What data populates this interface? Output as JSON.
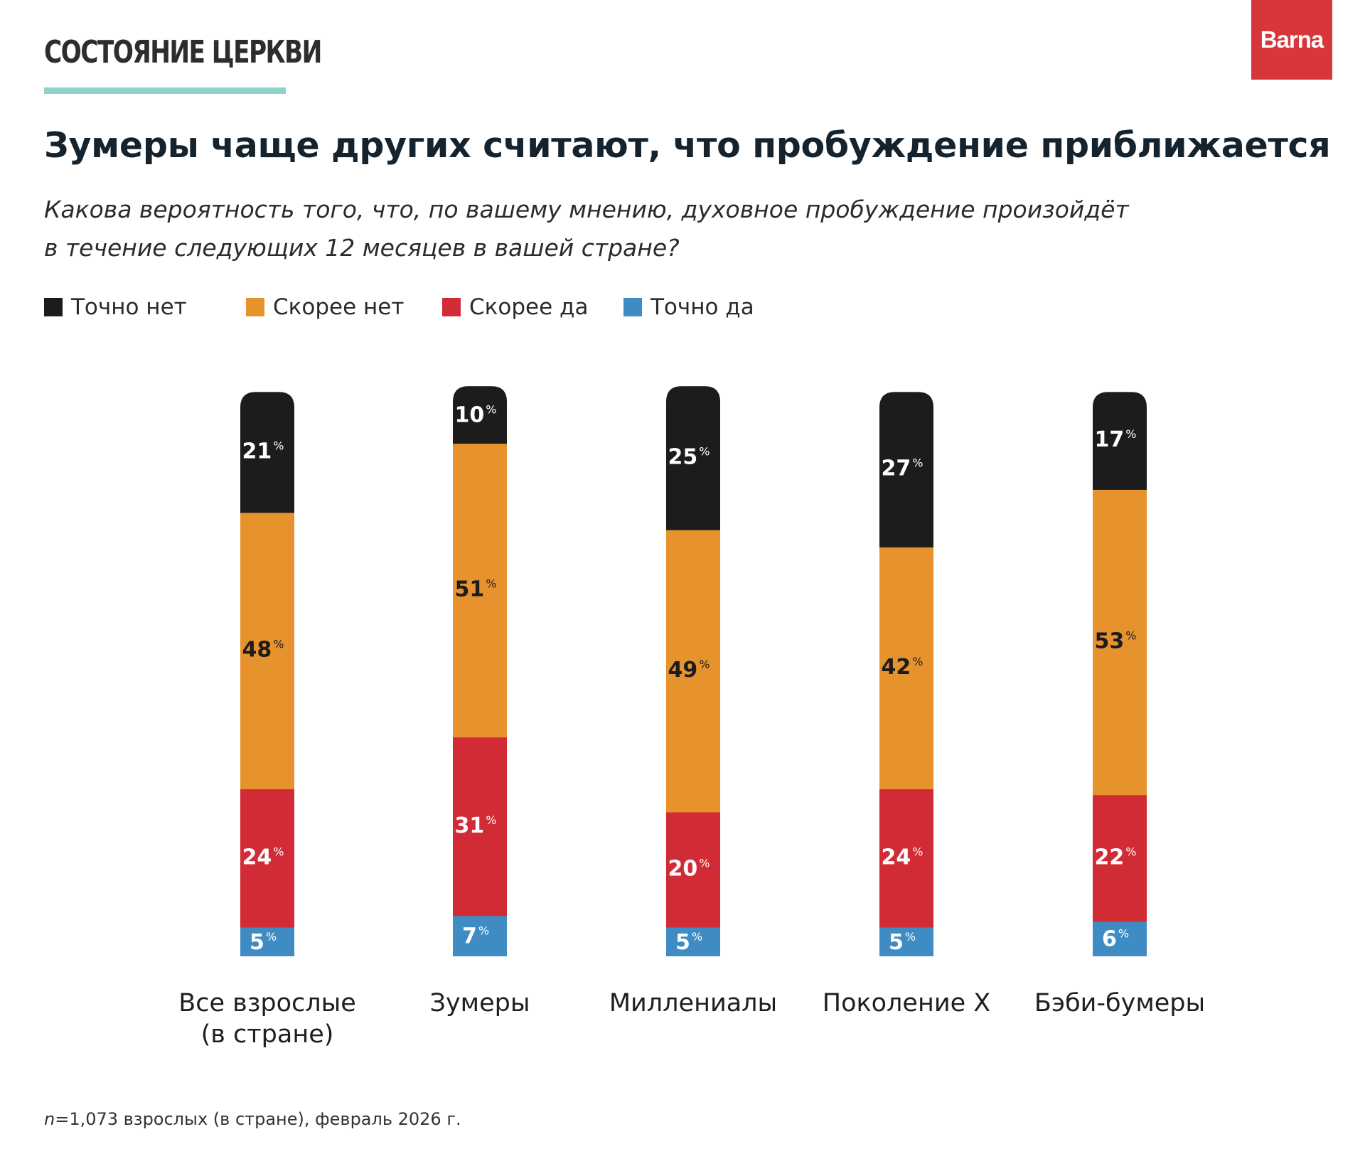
{
  "header": {
    "kicker": "СОСТОЯНИЕ ЦЕРКВИ",
    "brand": "Barna",
    "title": "Зумеры чаще других считают, что пробуждение приближается",
    "subtitle_line1": "Какова вероятность того, что, по вашему мнению, духовное пробуждение произойдёт",
    "subtitle_line2": "в течение следующих 12 месяцев в вашей стране?"
  },
  "legend": [
    {
      "label": "Точно нет",
      "color": "#1c1c1c"
    },
    {
      "label": "Скорее нет",
      "color": "#e7932d"
    },
    {
      "label": "Скорее да",
      "color": "#d12b36"
    },
    {
      "label": "Точно да",
      "color": "#3f8bc3"
    }
  ],
  "chart_data": {
    "type": "bar",
    "stacked": true,
    "orientation": "vertical",
    "unit": "%",
    "categories": [
      [
        "Все взрослые",
        "(в стране)"
      ],
      [
        "Зумеры"
      ],
      [
        "Миллениалы"
      ],
      [
        "Поколение X"
      ],
      [
        "Бэби-бумеры"
      ]
    ],
    "series": [
      {
        "name": "Точно нет",
        "color": "#1c1c1c",
        "values": [
          21,
          10,
          25,
          27,
          17
        ]
      },
      {
        "name": "Скорее нет",
        "color": "#e7932d",
        "values": [
          48,
          51,
          49,
          42,
          53
        ]
      },
      {
        "name": "Скорее да",
        "color": "#d12b36",
        "values": [
          24,
          31,
          20,
          24,
          22
        ]
      },
      {
        "name": "Точно да",
        "color": "#3f8bc3",
        "values": [
          5,
          7,
          5,
          5,
          6
        ]
      }
    ],
    "legend_position": "top-left",
    "grid": false
  },
  "footnote": {
    "n_symbol": "n",
    "text": "=1,073 взрослых (в стране), февраль 2026 г."
  }
}
